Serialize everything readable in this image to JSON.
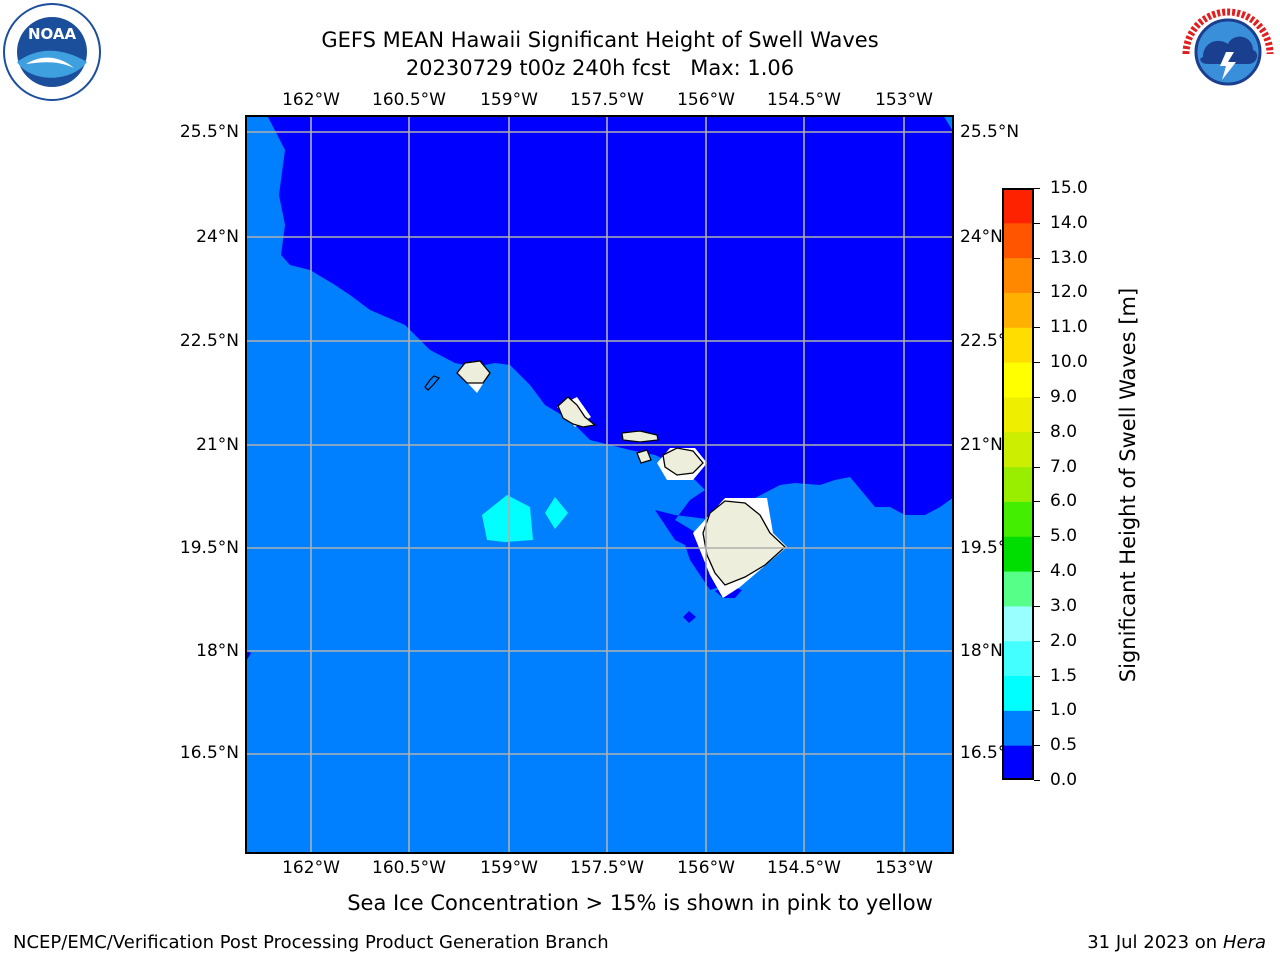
{
  "header": {
    "title_line1": "GEFS MEAN Hawaii Significant Height of Swell Waves",
    "title_line2": "20230729 t00z 240h fcst   Max: 1.06"
  },
  "logos": {
    "noaa_text": "NOAA",
    "noaa_ring_text": "NATIONAL OCEANIC AND ATMOSPHERIC ADMINISTRATION · U.S. DEPARTMENT OF COMMERCE",
    "nws_ring_text": "NATIONAL WEATHER SERVICE"
  },
  "map": {
    "lon_labels": [
      "162°W",
      "160.5°W",
      "159°W",
      "157.5°W",
      "156°W",
      "154.5°W",
      "153°W"
    ],
    "lat_labels_left": [
      "25.5°N",
      "24°N",
      "22.5°N",
      "21°N",
      "19.5°N",
      "18°N",
      "16.5°N"
    ],
    "lat_labels_right": [
      "25.5°N",
      "24°N",
      "22.5°N",
      "21°N",
      "19.5°N",
      "18°N",
      "16.5°N"
    ],
    "colors": {
      "deep_blue": "#0000ff",
      "ocean_blue": "#007fff",
      "cyan": "#00ffff",
      "land": "#eeeedc",
      "gridline": "#b0b0b0"
    }
  },
  "colorbar": {
    "label": "Significant Height of Swell Waves [m]",
    "ticks": [
      "0.0",
      "0.5",
      "1.0",
      "1.5",
      "2.0",
      "3.0",
      "4.0",
      "5.0",
      "6.0",
      "7.0",
      "8.0",
      "9.0",
      "10.0",
      "11.0",
      "12.0",
      "13.0",
      "14.0",
      "15.0"
    ],
    "colors": [
      "#0000ff",
      "#007fff",
      "#00ffff",
      "#44ffff",
      "#99ffff",
      "#55ff88",
      "#00dd00",
      "#44ee00",
      "#99ee00",
      "#ccee00",
      "#eeee00",
      "#ffff00",
      "#ffdd00",
      "#ffb000",
      "#ff8800",
      "#ff5500",
      "#ff2200",
      "#ff0000"
    ]
  },
  "footer": {
    "note": "Sea Ice Concentration > 15% is shown in pink to yellow",
    "left": "NCEP/EMC/Verification Post Processing Product Generation Branch",
    "right_date": "31 Jul 2023 on ",
    "right_host": "Hera"
  }
}
